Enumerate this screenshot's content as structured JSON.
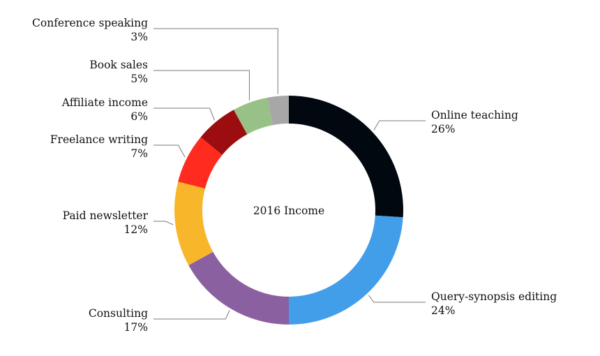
{
  "chart_data": {
    "type": "pie",
    "variant": "donut",
    "title": "",
    "center_label": "2016 Income",
    "slices": [
      {
        "label": "Online teaching",
        "value": 26,
        "value_label": "26%",
        "color": "#020810"
      },
      {
        "label": "Query-synopsis editing",
        "value": 24,
        "value_label": "24%",
        "color": "#439eea"
      },
      {
        "label": "Consulting",
        "value": 17,
        "value_label": "17%",
        "color": "#8b60a0"
      },
      {
        "label": "Paid newsletter",
        "value": 12,
        "value_label": "12%",
        "color": "#f8b72a"
      },
      {
        "label": "Freelance writing",
        "value": 7,
        "value_label": "7%",
        "color": "#fe2b1e"
      },
      {
        "label": "Affiliate income",
        "value": 6,
        "value_label": "6%",
        "color": "#9c0d10"
      },
      {
        "label": "Book sales",
        "value": 5,
        "value_label": "5%",
        "color": "#97c186"
      },
      {
        "label": "Conference speaking",
        "value": 3,
        "value_label": "3%",
        "color": "#a7a7a7"
      }
    ],
    "start_angle": "12 o'clock",
    "direction": "clockwise",
    "legend": "none",
    "labels": "outside with leader lines"
  }
}
